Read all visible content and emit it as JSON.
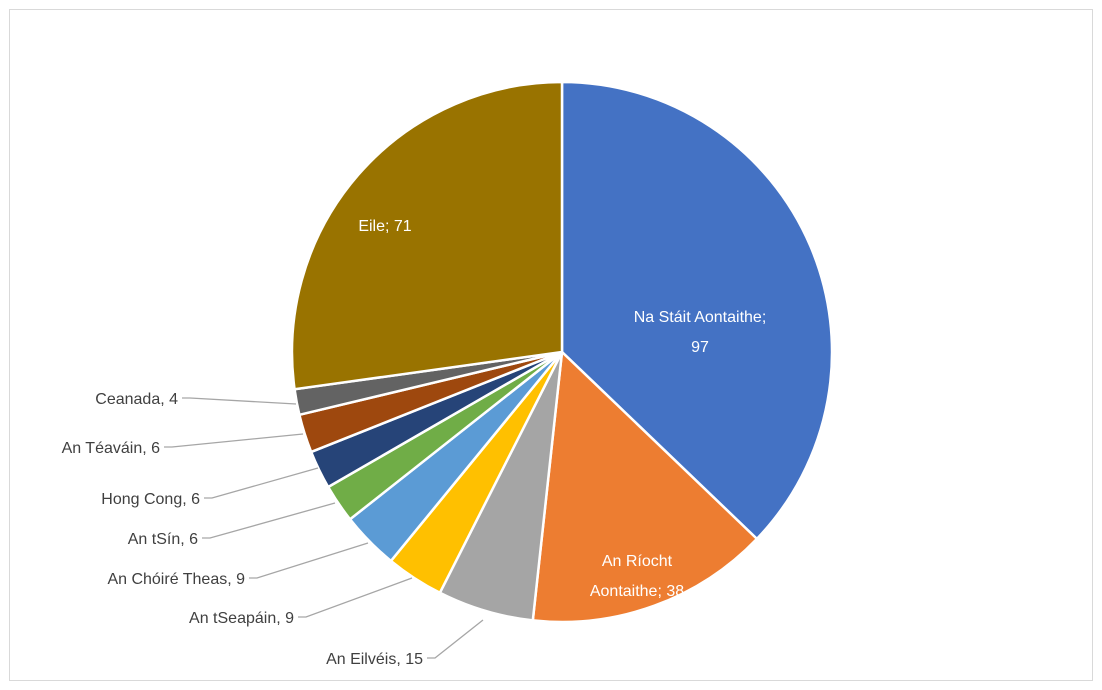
{
  "chart_data": {
    "type": "pie",
    "slices": [
      {
        "label": "Na Stáit Aontaithe",
        "value": 97,
        "color": "#4472C4"
      },
      {
        "label": "An Ríocht Aontaithe",
        "value": 38,
        "color": "#ED7D31"
      },
      {
        "label": "An Eilvéis",
        "value": 15,
        "color": "#A5A5A5"
      },
      {
        "label": "An tSeapáin",
        "value": 9,
        "color": "#FFC000"
      },
      {
        "label": "An Chóiré Theas",
        "value": 9,
        "color": "#5B9BD5"
      },
      {
        "label": "An tSín",
        "value": 6,
        "color": "#70AD47"
      },
      {
        "label": "Hong Cong",
        "value": 6,
        "color": "#264478"
      },
      {
        "label": "An Téaváin",
        "value": 6,
        "color": "#9E480E"
      },
      {
        "label": "Ceanada",
        "value": 4,
        "color": "#636363"
      },
      {
        "label": "Eile",
        "value": 71,
        "color": "#997300"
      }
    ],
    "data_labels": [
      {
        "lines": [
          "Na Stáit Aontaithe;",
          "97"
        ]
      },
      {
        "lines": [
          "An Ríocht",
          "Aontaithe; 38"
        ]
      },
      {
        "lines": [
          "An Eilvéis, 15"
        ]
      },
      {
        "lines": [
          "An tSeapáin, 9"
        ]
      },
      {
        "lines": [
          "An Chóiré Theas, 9"
        ]
      },
      {
        "lines": [
          "An tSín, 6"
        ]
      },
      {
        "lines": [
          "Hong Cong, 6"
        ]
      },
      {
        "lines": [
          "An Téaváin, 6"
        ]
      },
      {
        "lines": [
          "Ceanada, 4"
        ]
      },
      {
        "lines": [
          "Eile; 71"
        ]
      }
    ],
    "legend": "none"
  }
}
